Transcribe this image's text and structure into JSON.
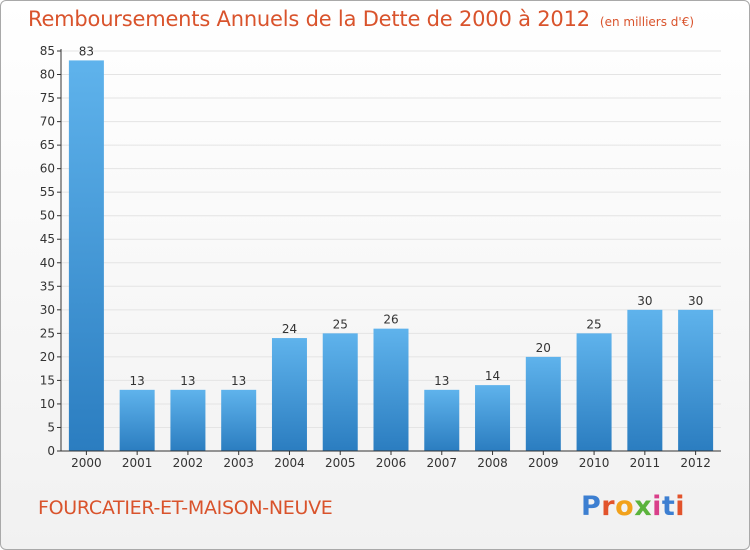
{
  "header": {
    "title": "Remboursements Annuels de la Dette de 2000 à 2012",
    "subtitle": "(en milliers d'€)"
  },
  "footer": {
    "town": "FOURCATIER-ET-MAISON-NEUVE",
    "logo": "Proxiti",
    "logo_colors": [
      "#3d7fd1",
      "#e2532b",
      "#f2a21c",
      "#5bb33c",
      "#d93f8a",
      "#3d7fd1",
      "#e2532b"
    ]
  },
  "colors": {
    "bar_top": "#5fb3ec",
    "bar_bottom": "#2b7dc0",
    "title": "#d9532c",
    "axis": "#333333",
    "grid": "#e4e4e4"
  },
  "chart_data": {
    "type": "bar",
    "categories": [
      "2000",
      "2001",
      "2002",
      "2003",
      "2004",
      "2005",
      "2006",
      "2007",
      "2008",
      "2009",
      "2010",
      "2011",
      "2012"
    ],
    "values": [
      83,
      13,
      13,
      13,
      24,
      25,
      26,
      13,
      14,
      20,
      25,
      30,
      30
    ],
    "title": "Remboursements Annuels de la Dette de 2000 à 2012",
    "subtitle": "(en milliers d'€)",
    "xlabel": "",
    "ylabel": "",
    "ylim": [
      0,
      85
    ],
    "yticks": [
      0,
      5,
      10,
      15,
      20,
      25,
      30,
      35,
      40,
      45,
      50,
      55,
      60,
      65,
      70,
      75,
      80,
      85
    ],
    "grid": true
  }
}
